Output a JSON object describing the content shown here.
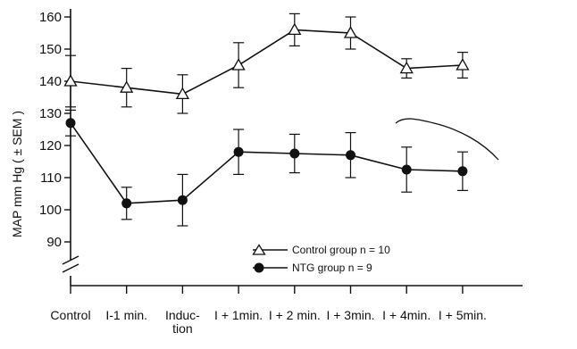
{
  "chart_data": {
    "type": "line",
    "ylabel": "MAP mm Hg ( ± SEM )",
    "categories": [
      "Control",
      "I-1 min.",
      "Induc-\ntion",
      "I + 1min.",
      "I + 2 min.",
      "I + 3min.",
      "I + 4min.",
      "I + 5min."
    ],
    "y_ticks": [
      90,
      100,
      110,
      120,
      130,
      140,
      150,
      160
    ],
    "ylim": [
      90,
      160
    ],
    "axis_break": true,
    "grid": false,
    "legend_position": "lower-right",
    "series": [
      {
        "name": "Control group n = 10",
        "marker": "open-triangle",
        "values": [
          140,
          138,
          136,
          145,
          156,
          155,
          144,
          145
        ],
        "sem": [
          8,
          6,
          6,
          7,
          5,
          5,
          3,
          4
        ]
      },
      {
        "name": "NTG group n = 9",
        "marker": "filled-circle",
        "values": [
          127,
          102,
          103,
          118,
          117.5,
          117,
          112.5,
          112
        ],
        "sem": [
          4,
          5,
          8,
          7,
          6,
          7,
          7,
          6
        ]
      }
    ]
  }
}
